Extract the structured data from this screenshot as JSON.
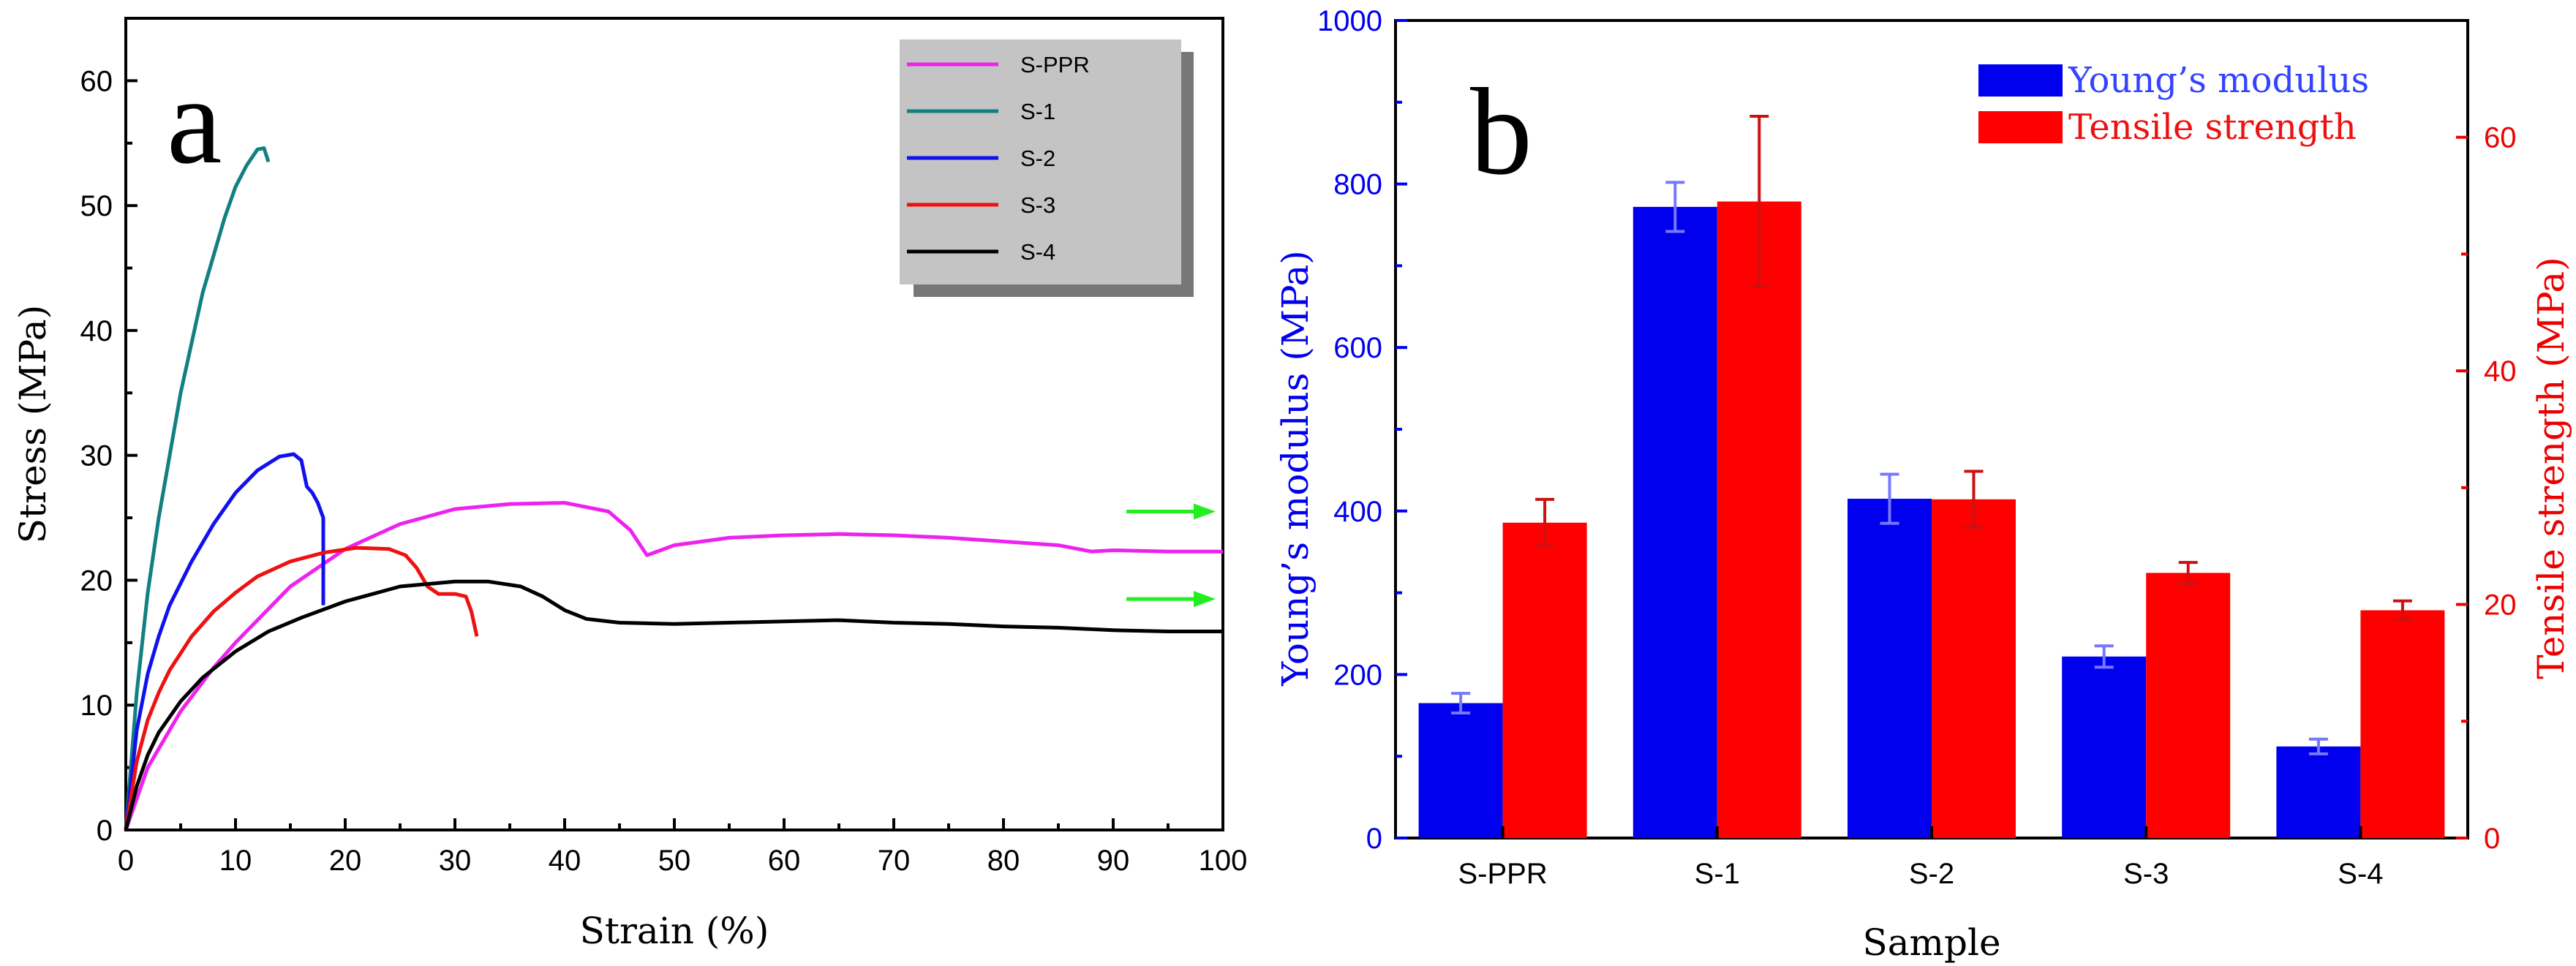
{
  "chart_data": [
    {
      "type": "line",
      "panel_label": "a",
      "xlabel": "Strain (%)",
      "ylabel": "Stress (MPa)",
      "xlim": [
        0,
        100
      ],
      "ylim": [
        0,
        65
      ],
      "xticks": [
        0,
        10,
        20,
        30,
        40,
        50,
        60,
        70,
        80,
        90,
        100
      ],
      "yticks": [
        0,
        10,
        20,
        30,
        40,
        50,
        60
      ],
      "legend_position": "top-right",
      "arrow_color": "#22ee22",
      "arrows": [
        {
          "y": 25.5
        },
        {
          "y": 18.5
        }
      ],
      "series": [
        {
          "name": "S-PPR",
          "color": "#ee22ee",
          "x": [
            0,
            2,
            5,
            8,
            10,
            15,
            20,
            25,
            30,
            35,
            40,
            44,
            46,
            47.5,
            50,
            55,
            60,
            65,
            70,
            75,
            80,
            85,
            88,
            90,
            95,
            100
          ],
          "y": [
            0,
            5,
            9.5,
            13,
            15,
            19.5,
            22.5,
            24.5,
            25.7,
            26.1,
            26.2,
            25.5,
            24,
            22,
            22.8,
            23.4,
            23.6,
            23.7,
            23.6,
            23.4,
            23.1,
            22.8,
            22.3,
            22.4,
            22.3,
            22.3
          ]
        },
        {
          "name": "S-1",
          "color": "#128080",
          "x": [
            0,
            1,
            2,
            3,
            4,
            5,
            6,
            7,
            8,
            9,
            10,
            11,
            12,
            12.6,
            13
          ],
          "y": [
            0,
            11,
            19,
            25,
            30,
            35,
            39,
            43,
            46,
            49,
            51.5,
            53.2,
            54.5,
            54.6,
            53.5
          ]
        },
        {
          "name": "S-2",
          "color": "#1111ee",
          "x": [
            0,
            1,
            2,
            3,
            4,
            6,
            8,
            10,
            12,
            14,
            15.3,
            16,
            16.5,
            17,
            17.5,
            18,
            18
          ],
          "y": [
            0,
            8,
            12.5,
            15.5,
            18,
            21.5,
            24.5,
            27,
            28.8,
            29.9,
            30.1,
            29.6,
            27.5,
            27,
            26.2,
            25,
            18
          ]
        },
        {
          "name": "S-3",
          "color": "#ee1111",
          "x": [
            0,
            1,
            2,
            3,
            4,
            6,
            8,
            10,
            12,
            15,
            18,
            21,
            24,
            25.5,
            26.5,
            27.5,
            28.5,
            30,
            31,
            31.5,
            32
          ],
          "y": [
            0,
            5.5,
            8.8,
            11,
            12.8,
            15.5,
            17.5,
            19,
            20.3,
            21.5,
            22.2,
            22.6,
            22.5,
            22,
            21,
            19.5,
            18.9,
            18.9,
            18.7,
            17.5,
            15.5
          ]
        },
        {
          "name": "S-4",
          "color": "#000000",
          "x": [
            0,
            1,
            2,
            3,
            5,
            7,
            10,
            13,
            16,
            20,
            25,
            30,
            33,
            36,
            38,
            40,
            42,
            45,
            50,
            55,
            60,
            65,
            70,
            75,
            80,
            85,
            90,
            95,
            100
          ],
          "y": [
            0,
            3.5,
            6,
            7.8,
            10.3,
            12.2,
            14.3,
            15.9,
            17,
            18.3,
            19.5,
            19.9,
            19.9,
            19.5,
            18.7,
            17.6,
            16.9,
            16.6,
            16.5,
            16.6,
            16.7,
            16.8,
            16.6,
            16.5,
            16.3,
            16.2,
            16.0,
            15.9,
            15.9
          ]
        }
      ]
    },
    {
      "type": "bar",
      "panel_label": "b",
      "categories": [
        "S-PPR",
        "S-1",
        "S-2",
        "S-3",
        "S-4"
      ],
      "xlabel": "Sample",
      "ylabel_left": "Young’s modulus (MPa)",
      "ylabel_right": "Tensile strength (MPa)",
      "ylim_left": [
        0,
        1000
      ],
      "ylim_right": [
        0,
        70
      ],
      "yticks_left": [
        0,
        200,
        400,
        600,
        800,
        1000
      ],
      "yticks_right": [
        0,
        20,
        40,
        60
      ],
      "legend_position": "top-right",
      "series": [
        {
          "name": "Young’s modulus",
          "axis": "left",
          "color": "#0000ee",
          "error_color": "#7777ff",
          "values": [
            165,
            772,
            415,
            222,
            112
          ],
          "errors": [
            12,
            30,
            30,
            13,
            9
          ]
        },
        {
          "name": "Tensile strength",
          "axis": "right",
          "color": "#ff0000",
          "error_color": "#cc1111",
          "values": [
            27,
            54.5,
            29,
            22.7,
            19.5
          ],
          "errors": [
            2.0,
            7.3,
            2.4,
            0.9,
            0.8
          ]
        }
      ]
    }
  ]
}
